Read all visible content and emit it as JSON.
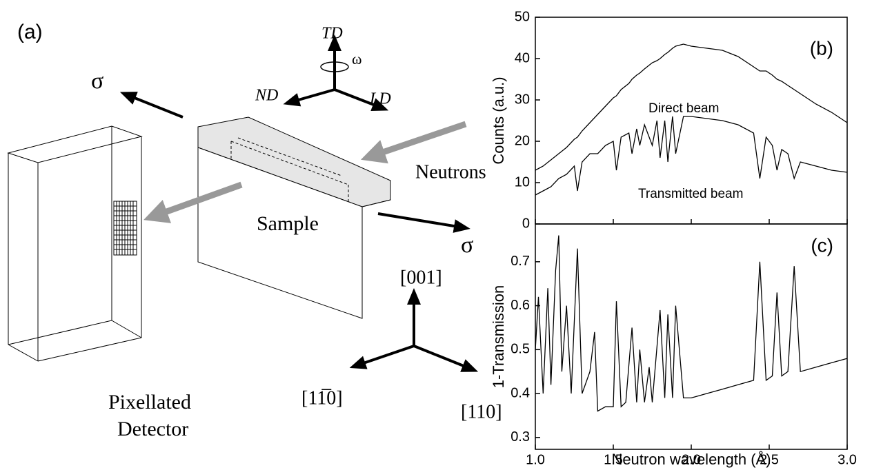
{
  "diagram": {
    "panel_label": "(a)",
    "sigma_left": "σ",
    "sigma_right": "σ",
    "td": "TD",
    "nd": "ND",
    "ld": "LD",
    "omega": "ω",
    "neutrons": "Neutrons",
    "sample": "Sample",
    "detector_line1": "Pixellated",
    "detector_line2": "Detector",
    "dir_001": "[001]",
    "dir_1bar10": "[11̅0]",
    "dir_110": "[110]"
  },
  "chart_data": [
    {
      "type": "line",
      "panel_label": "(b)",
      "y_label": "Counts (a.u.)",
      "annotations": [
        "Direct beam",
        "Transmitted beam"
      ],
      "x": [
        1.0,
        1.05,
        1.1,
        1.15,
        1.2,
        1.25,
        1.27,
        1.3,
        1.35,
        1.4,
        1.45,
        1.5,
        1.52,
        1.55,
        1.6,
        1.62,
        1.65,
        1.67,
        1.7,
        1.75,
        1.78,
        1.8,
        1.83,
        1.85,
        1.88,
        1.9,
        1.95,
        2.0,
        2.1,
        2.2,
        2.3,
        2.4,
        2.44,
        2.48,
        2.52,
        2.55,
        2.58,
        2.62,
        2.66,
        2.7,
        2.8,
        2.9,
        3.0
      ],
      "series": [
        {
          "name": "Direct beam",
          "color": "#000000",
          "values": [
            13,
            14,
            15.5,
            17,
            18.5,
            20.5,
            21,
            22.5,
            24.5,
            26.5,
            28.5,
            30.5,
            31,
            32.5,
            34,
            35,
            36,
            36.5,
            37.5,
            39,
            39.5,
            40,
            41,
            41.5,
            42.5,
            43,
            43.5,
            43,
            42.5,
            42,
            40.5,
            38,
            37,
            37,
            36,
            35,
            34.5,
            33.5,
            32.5,
            31.5,
            29,
            27,
            24.5
          ]
        },
        {
          "name": "Transmitted beam",
          "color": "#000000",
          "values": [
            7,
            8,
            9,
            11,
            12,
            14,
            8,
            15,
            17,
            17,
            19,
            20,
            13,
            21,
            22,
            17,
            23,
            19,
            24,
            19,
            25,
            16,
            25,
            15,
            26,
            17,
            26,
            26,
            25.5,
            25,
            24,
            22,
            11,
            21,
            19,
            13,
            18,
            17,
            11,
            15,
            14,
            13,
            12.5
          ]
        }
      ],
      "xlim": [
        1.0,
        3.0
      ],
      "xticks": [
        1.0,
        1.5,
        2.0,
        2.5,
        3.0
      ],
      "ylim": [
        0,
        50
      ],
      "yticks": [
        0,
        10,
        20,
        30,
        40,
        50
      ]
    },
    {
      "type": "line",
      "panel_label": "(c)",
      "y_label": "1-Transmission",
      "x_label": "Neutron wavelength (Å)",
      "x": [
        1.0,
        1.02,
        1.05,
        1.08,
        1.1,
        1.13,
        1.15,
        1.17,
        1.2,
        1.23,
        1.27,
        1.3,
        1.35,
        1.38,
        1.4,
        1.45,
        1.5,
        1.52,
        1.55,
        1.58,
        1.62,
        1.65,
        1.67,
        1.7,
        1.73,
        1.75,
        1.8,
        1.83,
        1.85,
        1.88,
        1.9,
        1.95,
        2.0,
        2.1,
        2.2,
        2.3,
        2.4,
        2.44,
        2.48,
        2.52,
        2.55,
        2.58,
        2.62,
        2.66,
        2.7,
        2.8,
        2.9,
        3.0
      ],
      "series": [
        {
          "name": "1-Transmission",
          "color": "#000000",
          "values": [
            0.5,
            0.62,
            0.4,
            0.64,
            0.42,
            0.68,
            0.76,
            0.45,
            0.6,
            0.4,
            0.73,
            0.4,
            0.45,
            0.54,
            0.36,
            0.37,
            0.37,
            0.61,
            0.37,
            0.38,
            0.55,
            0.38,
            0.5,
            0.38,
            0.46,
            0.38,
            0.59,
            0.39,
            0.58,
            0.39,
            0.6,
            0.39,
            0.39,
            0.4,
            0.41,
            0.42,
            0.43,
            0.7,
            0.43,
            0.44,
            0.63,
            0.44,
            0.45,
            0.69,
            0.45,
            0.46,
            0.47,
            0.48
          ]
        }
      ],
      "xlim": [
        1.0,
        3.0
      ],
      "xticks": [
        {
          "value": 1.0,
          "label": "1.0"
        },
        {
          "value": 1.5,
          "label": "1.5"
        },
        {
          "value": 2.0,
          "label": "2.0"
        },
        {
          "value": 2.5,
          "label": "2.5"
        },
        {
          "value": 3.0,
          "label": "3.0"
        }
      ],
      "ylim": [
        0.273,
        0.786
      ],
      "yticks": [
        0.3,
        0.4,
        0.5,
        0.6,
        0.7
      ]
    }
  ]
}
